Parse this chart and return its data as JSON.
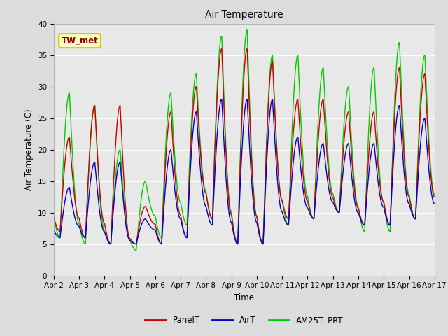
{
  "title": "Air Temperature",
  "ylabel": "Air Temperature (C)",
  "xlabel": "Time",
  "annotation": "TW_met",
  "annotation_color": "#8B0000",
  "annotation_bg": "#FFFFC0",
  "annotation_border": "#CCCC00",
  "ylim": [
    0,
    40
  ],
  "fig_bg": "#DCDCDC",
  "axes_bg": "#E8E8E8",
  "grid_color": "#FFFFFF",
  "line_panelT_color": "#CC0000",
  "line_airT_color": "#0000CC",
  "line_am25_color": "#00CC00",
  "legend_labels": [
    "PanelT",
    "AirT",
    "AM25T_PRT"
  ],
  "x_tick_labels": [
    "Apr 2",
    "Apr 3",
    "Apr 4",
    "Apr 5",
    "Apr 6",
    "Apr 7",
    "Apr 8",
    "Apr 9",
    "Apr 10",
    "Apr 11",
    "Apr 12",
    "Apr 13",
    "Apr 14",
    "Apr 15",
    "Apr 16",
    "Apr 17"
  ],
  "num_days": 15,
  "ppd": 144,
  "panel_peaks": [
    22,
    27,
    27,
    11,
    26,
    30,
    36,
    36,
    34,
    28,
    28,
    26,
    26,
    33,
    32
  ],
  "panel_mins": [
    7,
    6,
    5,
    5,
    5,
    6,
    9,
    5,
    5,
    9,
    9,
    10,
    8,
    8,
    9
  ],
  "air_peaks": [
    14,
    18,
    18,
    9,
    20,
    26,
    28,
    28,
    28,
    22,
    21,
    21,
    21,
    27,
    25
  ],
  "air_mins": [
    6,
    6,
    5,
    5,
    5,
    6,
    8,
    5,
    5,
    8,
    9,
    10,
    8,
    8,
    9
  ],
  "am25_peaks": [
    29,
    27,
    20,
    15,
    29,
    32,
    38,
    39,
    35,
    35,
    33,
    30,
    33,
    37,
    35
  ],
  "am25_mins": [
    6,
    5,
    5,
    4,
    6,
    8,
    9,
    5,
    5,
    8,
    9,
    10,
    7,
    7,
    9
  ]
}
